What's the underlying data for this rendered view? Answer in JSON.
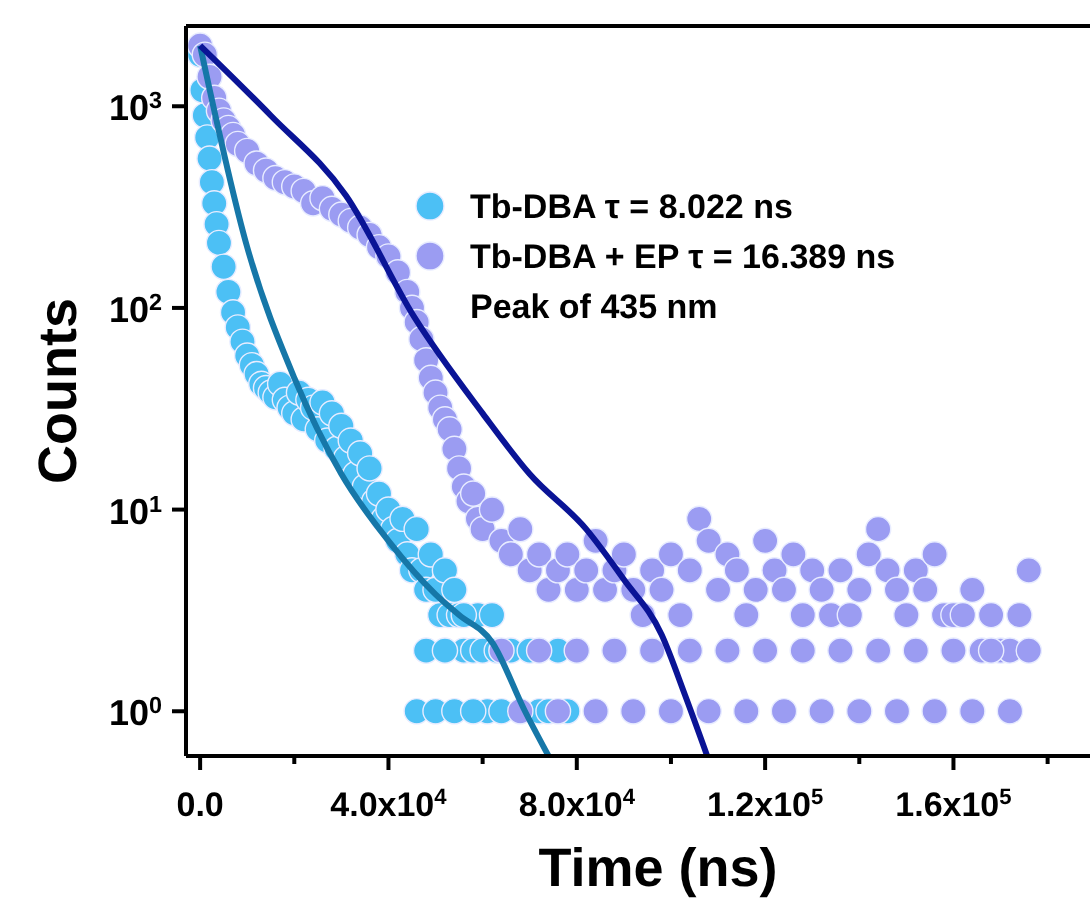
{
  "chart_data": {
    "type": "scatter",
    "xlabel": "Time (ns)",
    "ylabel": "Counts",
    "log": "y",
    "xlim": [
      -3000,
      189000
    ],
    "ylim": [
      0.6,
      2500
    ],
    "xticks": [
      {
        "value": 0,
        "label": "0.0"
      },
      {
        "value": 20000,
        "label": null
      },
      {
        "value": 40000,
        "label": "4.0x10$^{4}$"
      },
      {
        "value": 60000,
        "label": null
      },
      {
        "value": 80000,
        "label": "8.0x10$^{4}$"
      },
      {
        "value": 100000,
        "label": null
      },
      {
        "value": 120000,
        "label": "1.2x10$^{5}$"
      },
      {
        "value": 140000,
        "label": null
      },
      {
        "value": 160000,
        "label": "1.6x10$^{5}$"
      },
      {
        "value": 180000,
        "label": null
      }
    ],
    "yticks": [
      {
        "value": 1,
        "label": "10$^{0}$"
      },
      {
        "value": 10,
        "label": "10$^{1}$"
      },
      {
        "value": 100,
        "label": "10$^{2}$"
      },
      {
        "value": 1000,
        "label": "10$^{3}$"
      }
    ],
    "grid": false,
    "legend": "top right",
    "marker": "circle",
    "annotations": [
      "Peak of 435 nm"
    ],
    "series": [
      {
        "name": "Tb-DBA τ = 8.022 ns",
        "color": "#4cc0f5",
        "x": [
          0,
          500,
          1000,
          1500,
          2000,
          2500,
          3000,
          3500,
          4000,
          5000,
          6000,
          7000,
          8000,
          9000,
          10000,
          11000,
          12000,
          13000,
          14000,
          15000,
          16000,
          17000,
          18000,
          19000,
          20000,
          21000,
          22000,
          23000,
          24000,
          25000,
          26000,
          27000,
          28000,
          29000,
          30000,
          31000,
          32000,
          33000,
          34000,
          35000,
          36000,
          37000,
          38000,
          39000,
          40000,
          41000,
          42000,
          43000,
          44000,
          45000,
          46000,
          47000,
          48000,
          49000,
          50000,
          51000,
          52000,
          53000,
          54000,
          55000,
          56000,
          58000,
          59000,
          60000,
          61000,
          62000,
          63000,
          64000,
          66000,
          70000,
          72000,
          74000,
          76000,
          78000,
          46000,
          48000,
          50000,
          52000,
          54000,
          56000,
          58000
        ],
        "values": [
          1800,
          1200,
          900,
          700,
          550,
          420,
          330,
          260,
          210,
          160,
          120,
          95,
          80,
          68,
          58,
          52,
          47,
          42,
          40,
          38,
          36,
          42,
          35,
          32,
          30,
          38,
          28,
          35,
          32,
          25,
          34,
          22,
          30,
          20,
          26,
          18,
          22,
          15,
          19,
          13,
          16,
          11,
          12,
          9,
          10,
          8,
          7,
          9,
          6,
          5,
          8,
          5,
          4,
          6,
          4,
          3,
          5,
          3,
          4,
          3,
          2,
          2,
          3,
          2,
          1,
          3,
          2,
          1,
          2,
          2,
          1,
          1,
          2,
          1,
          1,
          2,
          1,
          2,
          1,
          3,
          1
        ]
      },
      {
        "name": "Tb-DBA + EP τ = 16.389 ns",
        "color": "#9b9cf2",
        "x": [
          0,
          1000,
          2000,
          3000,
          4000,
          5000,
          6000,
          7000,
          8000,
          10000,
          12000,
          14000,
          16000,
          18000,
          20000,
          22000,
          24000,
          26000,
          28000,
          30000,
          32000,
          34000,
          36000,
          38000,
          40000,
          42000,
          44000,
          45000,
          46000,
          47000,
          48000,
          49000,
          50000,
          51000,
          52000,
          53000,
          54000,
          55000,
          56000,
          57000,
          58000,
          59000,
          60000,
          62000,
          64000,
          66000,
          68000,
          70000,
          72000,
          74000,
          76000,
          78000,
          80000,
          82000,
          84000,
          86000,
          88000,
          90000,
          92000,
          94000,
          96000,
          98000,
          100000,
          102000,
          104000,
          106000,
          108000,
          110000,
          112000,
          114000,
          116000,
          118000,
          120000,
          122000,
          124000,
          126000,
          128000,
          130000,
          132000,
          134000,
          136000,
          138000,
          140000,
          142000,
          144000,
          146000,
          148000,
          150000,
          152000,
          154000,
          156000,
          158000,
          160000,
          162000,
          164000,
          166000,
          168000,
          170000,
          172000,
          174000,
          176000,
          64000,
          72000,
          80000,
          88000,
          96000,
          104000,
          112000,
          120000,
          128000,
          136000,
          144000,
          152000,
          160000,
          168000,
          176000,
          68000,
          76000,
          84000,
          92000,
          100000,
          108000,
          116000,
          124000,
          132000,
          140000,
          148000,
          156000,
          164000,
          172000
        ],
        "values": [
          2000,
          1800,
          1400,
          1100,
          950,
          850,
          780,
          720,
          650,
          600,
          520,
          480,
          440,
          420,
          400,
          380,
          330,
          350,
          310,
          290,
          270,
          250,
          230,
          200,
          180,
          150,
          120,
          100,
          85,
          70,
          55,
          45,
          38,
          32,
          28,
          25,
          20,
          16,
          13,
          11,
          12,
          9,
          8,
          10,
          7,
          6,
          8,
          5,
          6,
          4,
          5,
          6,
          4,
          5,
          7,
          4,
          5,
          6,
          4,
          3,
          5,
          4,
          6,
          3,
          5,
          9,
          7,
          4,
          6,
          5,
          3,
          4,
          7,
          5,
          4,
          6,
          3,
          5,
          4,
          3,
          5,
          3,
          4,
          6,
          8,
          5,
          4,
          3,
          5,
          4,
          6,
          3,
          3,
          3,
          4,
          2,
          3,
          2,
          2,
          3,
          5,
          2,
          2,
          2,
          2,
          2,
          2,
          2,
          2,
          2,
          2,
          2,
          2,
          2,
          2,
          2,
          1,
          1,
          1,
          1,
          1,
          1,
          1,
          1,
          1,
          1,
          1,
          1,
          1,
          1
        ]
      },
      {
        "type": "line",
        "color": "#1677a8",
        "marker": "none",
        "x": [
          0,
          10000,
          20000,
          30000,
          40000,
          50000,
          55000,
          62000,
          69000,
          74000
        ],
        "values": [
          2000,
          200,
          45,
          15,
          7,
          3.8,
          3,
          2.2,
          1,
          0.6
        ]
      },
      {
        "type": "line",
        "color": "#0a1496",
        "marker": "none",
        "x": [
          0,
          15000,
          31000,
          45500,
          60000,
          70000,
          82000,
          90000,
          98000,
          103000,
          107700
        ],
        "values": [
          2000,
          900,
          360,
          90,
          30,
          15,
          8,
          4.5,
          2.4,
          1.2,
          0.6
        ]
      }
    ]
  }
}
